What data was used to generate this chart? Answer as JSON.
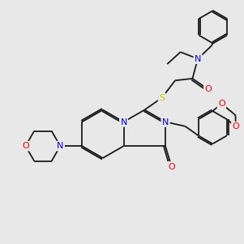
{
  "bg_color": "#e8e8e8",
  "bond_color": "#1a1a1a",
  "N_color": "#0000ff",
  "O_color": "#ff0000",
  "S_color": "#cccc00",
  "lw": 1.3,
  "doffset": 0.07,
  "fs": 8.0,
  "fig_width": 3.0,
  "fig_height": 3.0,
  "dpi": 100,
  "xlim": [
    0,
    10
  ],
  "ylim": [
    0,
    10
  ]
}
